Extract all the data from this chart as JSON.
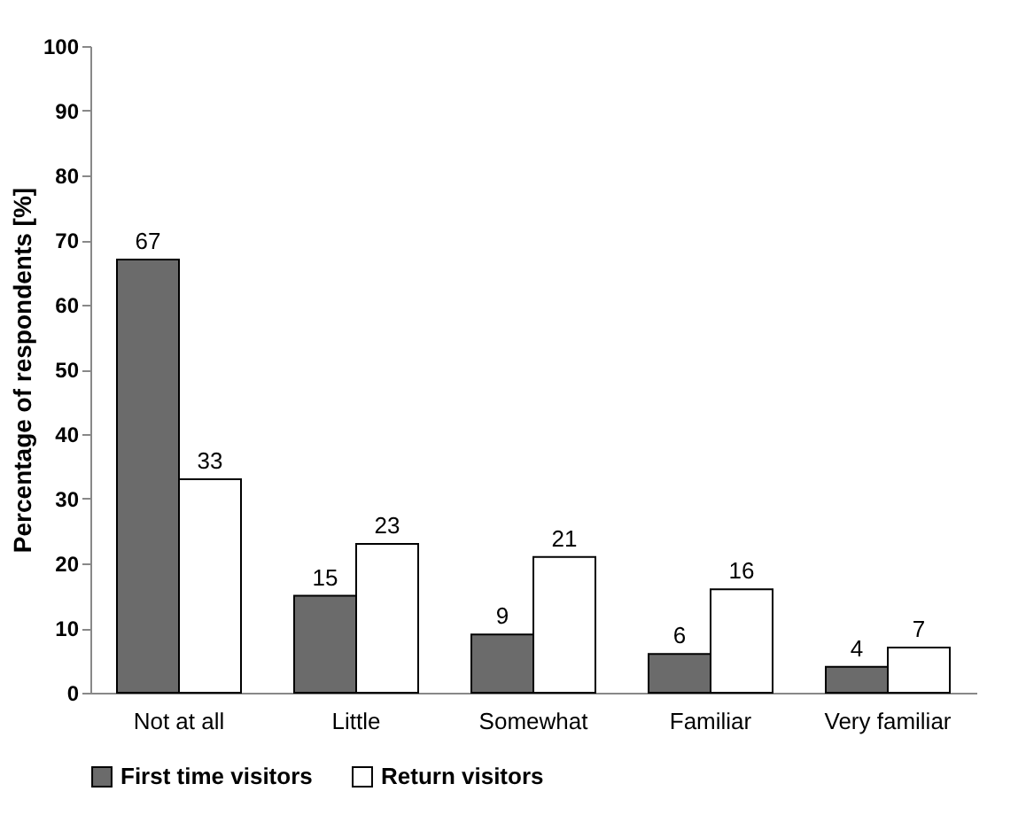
{
  "chart_data": {
    "type": "bar",
    "ylabel": "Percentage of respondents [%]",
    "categories": [
      "Not at all",
      "Little",
      "Somewhat",
      "Familiar",
      "Very familiar"
    ],
    "series": [
      {
        "name": "First time visitors",
        "color": "#6b6b6b",
        "values": [
          67,
          15,
          9,
          6,
          4
        ]
      },
      {
        "name": "Return visitors",
        "color": "#ffffff",
        "values": [
          33,
          23,
          21,
          16,
          7
        ]
      }
    ],
    "ylim": [
      0,
      100
    ],
    "yticks": [
      0,
      10,
      20,
      30,
      40,
      50,
      60,
      70,
      80,
      90,
      100
    ],
    "data_labels": true,
    "legend": "bottom"
  }
}
